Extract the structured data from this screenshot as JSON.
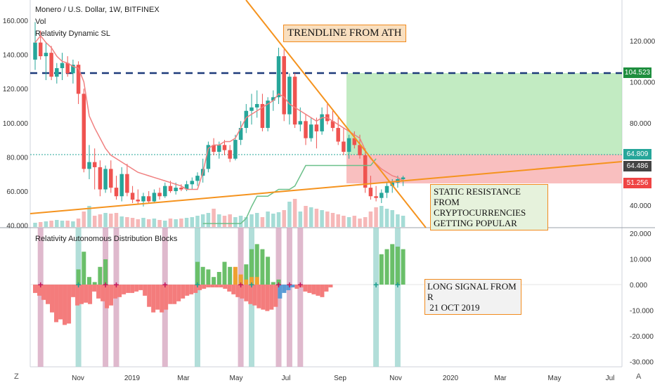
{
  "header": {
    "title": "Monero / U.S. Dollar, 1W, BITFINEX",
    "vol_label": "Vol",
    "indicator_label": "Relativity Dynamic SL",
    "lower_title": "Relativity Autonomous Distribution Blocks"
  },
  "annotations": {
    "trendline": "TRENDLINE FROM ATH",
    "static_lines": [
      "STATIC RESISTANCE",
      "FROM CRYPTOCURRENCIES",
      "GETTING POPULAR"
    ],
    "long_lines": [
      "LONG SIGNAL FROM R",
      " 21 OCT 2019"
    ]
  },
  "price_badges": [
    {
      "label": "104.523",
      "color": "#1e8e3e"
    },
    {
      "label": "64.809",
      "color": "#26a69a"
    },
    {
      "label": "64.486",
      "color": "#444444"
    },
    {
      "label": "51.256",
      "color": "#ef4444"
    }
  ],
  "bottom_left": "Z",
  "bottom_right": "A",
  "chart_data": [
    {
      "type": "candlestick",
      "title": "Monero / U.S. Dollar, 1W, BITFINEX",
      "left_axis_ticks": [
        "160.000",
        "140.000",
        "120.000",
        "100.000",
        "80.000",
        "60.000",
        "40.000"
      ],
      "right_axis_ticks": [
        "120.000",
        "100.000",
        "80.000",
        "60.000",
        "40.000"
      ],
      "x_ticks": [
        "Nov",
        "2019",
        "Mar",
        "May",
        "Jul",
        "Sep",
        "Nov",
        "2020",
        "Mar",
        "May",
        "Jul"
      ],
      "candles": [
        {
          "o": 138,
          "h": 160,
          "l": 132,
          "c": 148
        },
        {
          "o": 148,
          "h": 155,
          "l": 138,
          "c": 140
        },
        {
          "o": 140,
          "h": 148,
          "l": 126,
          "c": 142
        },
        {
          "o": 142,
          "h": 146,
          "l": 126,
          "c": 128
        },
        {
          "o": 128,
          "h": 136,
          "l": 124,
          "c": 133
        },
        {
          "o": 133,
          "h": 142,
          "l": 126,
          "c": 136
        },
        {
          "o": 136,
          "h": 140,
          "l": 128,
          "c": 130
        },
        {
          "o": 130,
          "h": 138,
          "l": 124,
          "c": 135
        },
        {
          "o": 135,
          "h": 137,
          "l": 112,
          "c": 118
        },
        {
          "o": 118,
          "h": 121,
          "l": 72,
          "c": 74
        },
        {
          "o": 74,
          "h": 88,
          "l": 68,
          "c": 78
        },
        {
          "o": 78,
          "h": 86,
          "l": 62,
          "c": 75
        },
        {
          "o": 75,
          "h": 79,
          "l": 58,
          "c": 62
        },
        {
          "o": 62,
          "h": 76,
          "l": 60,
          "c": 74
        },
        {
          "o": 74,
          "h": 79,
          "l": 60,
          "c": 63
        },
        {
          "o": 63,
          "h": 70,
          "l": 56,
          "c": 58
        },
        {
          "o": 58,
          "h": 75,
          "l": 55,
          "c": 71
        },
        {
          "o": 71,
          "h": 77,
          "l": 58,
          "c": 60
        },
        {
          "o": 60,
          "h": 64,
          "l": 54,
          "c": 56
        },
        {
          "o": 56,
          "h": 62,
          "l": 53,
          "c": 55
        },
        {
          "o": 55,
          "h": 60,
          "l": 52,
          "c": 58
        },
        {
          "o": 58,
          "h": 61,
          "l": 54,
          "c": 55
        },
        {
          "o": 55,
          "h": 62,
          "l": 54,
          "c": 60
        },
        {
          "o": 60,
          "h": 63,
          "l": 56,
          "c": 58
        },
        {
          "o": 58,
          "h": 66,
          "l": 57,
          "c": 64
        },
        {
          "o": 64,
          "h": 67,
          "l": 60,
          "c": 61
        },
        {
          "o": 61,
          "h": 66,
          "l": 59,
          "c": 63
        },
        {
          "o": 63,
          "h": 65,
          "l": 61,
          "c": 62
        },
        {
          "o": 62,
          "h": 67,
          "l": 61,
          "c": 65
        },
        {
          "o": 65,
          "h": 69,
          "l": 62,
          "c": 67
        },
        {
          "o": 67,
          "h": 72,
          "l": 64,
          "c": 70
        },
        {
          "o": 70,
          "h": 80,
          "l": 66,
          "c": 74
        },
        {
          "o": 74,
          "h": 90,
          "l": 72,
          "c": 88
        },
        {
          "o": 88,
          "h": 92,
          "l": 82,
          "c": 84
        },
        {
          "o": 84,
          "h": 90,
          "l": 80,
          "c": 88
        },
        {
          "o": 88,
          "h": 91,
          "l": 82,
          "c": 85
        },
        {
          "o": 85,
          "h": 88,
          "l": 78,
          "c": 80
        },
        {
          "o": 80,
          "h": 94,
          "l": 79,
          "c": 91
        },
        {
          "o": 91,
          "h": 102,
          "l": 88,
          "c": 98
        },
        {
          "o": 98,
          "h": 112,
          "l": 95,
          "c": 108
        },
        {
          "o": 108,
          "h": 118,
          "l": 100,
          "c": 110
        },
        {
          "o": 110,
          "h": 120,
          "l": 104,
          "c": 112
        },
        {
          "o": 112,
          "h": 118,
          "l": 96,
          "c": 98
        },
        {
          "o": 98,
          "h": 116,
          "l": 96,
          "c": 114
        },
        {
          "o": 114,
          "h": 120,
          "l": 108,
          "c": 116
        },
        {
          "o": 116,
          "h": 145,
          "l": 112,
          "c": 140
        },
        {
          "o": 140,
          "h": 144,
          "l": 102,
          "c": 106
        },
        {
          "o": 106,
          "h": 130,
          "l": 100,
          "c": 128
        },
        {
          "o": 128,
          "h": 130,
          "l": 98,
          "c": 100
        },
        {
          "o": 100,
          "h": 110,
          "l": 96,
          "c": 102
        },
        {
          "o": 102,
          "h": 106,
          "l": 88,
          "c": 92
        },
        {
          "o": 92,
          "h": 104,
          "l": 90,
          "c": 100
        },
        {
          "o": 100,
          "h": 104,
          "l": 86,
          "c": 96
        },
        {
          "o": 96,
          "h": 110,
          "l": 94,
          "c": 106
        },
        {
          "o": 106,
          "h": 112,
          "l": 100,
          "c": 102
        },
        {
          "o": 102,
          "h": 108,
          "l": 96,
          "c": 98
        },
        {
          "o": 98,
          "h": 104,
          "l": 88,
          "c": 90
        },
        {
          "o": 90,
          "h": 98,
          "l": 82,
          "c": 84
        },
        {
          "o": 84,
          "h": 94,
          "l": 80,
          "c": 92
        },
        {
          "o": 92,
          "h": 96,
          "l": 86,
          "c": 88
        },
        {
          "o": 88,
          "h": 94,
          "l": 80,
          "c": 82
        },
        {
          "o": 82,
          "h": 86,
          "l": 60,
          "c": 63
        },
        {
          "o": 63,
          "h": 70,
          "l": 56,
          "c": 58
        },
        {
          "o": 58,
          "h": 64,
          "l": 55,
          "c": 57
        },
        {
          "o": 57,
          "h": 62,
          "l": 54,
          "c": 60
        },
        {
          "o": 60,
          "h": 66,
          "l": 57,
          "c": 64
        },
        {
          "o": 64,
          "h": 68,
          "l": 60,
          "c": 66
        },
        {
          "o": 66,
          "h": 70,
          "l": 63,
          "c": 68
        },
        {
          "o": 68,
          "h": 70,
          "l": 64,
          "c": 69
        }
      ],
      "dynamic_sl": [
        148,
        152,
        148,
        145,
        140,
        137,
        136,
        134,
        133,
        125,
        105,
        98,
        92,
        86,
        82,
        80,
        78,
        76,
        74,
        72,
        71,
        70,
        69,
        68,
        67,
        66,
        65,
        64,
        62,
        62,
        62,
        72,
        86,
        88,
        88,
        90,
        90,
        92,
        98,
        104,
        106,
        108,
        110,
        112,
        114,
        118,
        116,
        112,
        110,
        108,
        106,
        104,
        102,
        104,
        104,
        102,
        100,
        98,
        96,
        94,
        92,
        85,
        80,
        77,
        74,
        72,
        70,
        69,
        67
      ],
      "green_step_line": [
        42,
        42,
        42,
        42,
        42,
        42,
        42,
        42,
        45,
        52,
        58,
        58,
        58,
        60,
        62,
        62,
        62,
        64,
        70,
        76,
        76,
        76,
        76,
        76,
        76,
        76,
        76,
        76,
        76,
        76,
        76,
        76,
        80
      ],
      "volume": [
        6,
        7,
        8,
        9,
        10,
        9,
        9,
        8,
        12,
        22,
        30,
        16,
        18,
        20,
        19,
        20,
        15,
        14,
        13,
        11,
        13,
        11,
        12,
        10,
        9,
        12,
        11,
        12,
        13,
        14,
        16,
        18,
        20,
        26,
        18,
        16,
        18,
        14,
        16,
        14,
        18,
        20,
        14,
        22,
        19,
        21,
        24,
        36,
        40,
        22,
        30,
        28,
        26,
        24,
        22,
        20,
        18,
        16,
        14,
        16,
        12,
        14,
        22,
        28,
        30,
        26,
        24,
        18,
        16
      ],
      "levels": {
        "dashed_resistance": 129,
        "target": 104.523,
        "entry": 64.809,
        "stop": 51.256,
        "last": 64.486
      }
    },
    {
      "type": "bar",
      "title": "Relativity Autonomous Distribution Blocks",
      "y_ticks": [
        "20.000",
        "10.000",
        "0.000",
        "-10.000",
        "-20.000",
        "-30.000"
      ],
      "ylim": [
        -31,
        21
      ],
      "values": [
        -6,
        -8,
        -11,
        -14,
        -20,
        -27,
        -25,
        -29,
        -28,
        -9,
        -15,
        -14,
        -13,
        -14,
        -5,
        -10,
        -12,
        -17,
        -15,
        -10,
        -9,
        -7,
        -6,
        -6,
        -5,
        -4,
        -8,
        -16,
        -20,
        -18,
        -20,
        -18,
        -14,
        -14,
        -12,
        -10,
        -8,
        -7,
        -6,
        -4,
        -3,
        -2,
        -2,
        -2,
        -2,
        -3,
        -5,
        -7,
        -9,
        -10,
        -12,
        -14,
        -15,
        -17,
        -18,
        -19,
        -18,
        -16,
        -10,
        -6,
        -4,
        -2,
        -3,
        -2,
        -5,
        -6,
        -7,
        -8,
        -9,
        -5,
        -2,
        8,
        6,
        4,
        5,
        9,
        11,
        9,
        12,
        13,
        15,
        16,
        15,
        14,
        13
      ],
      "positive_block_values": [
        6,
        13,
        3,
        1,
        7,
        10,
        9,
        7,
        6,
        3,
        5,
        9,
        7,
        4,
        3,
        8,
        14,
        16,
        14,
        11,
        7,
        4,
        2,
        3,
        3,
        2,
        1,
        1,
        2,
        12,
        14,
        16,
        15,
        14
      ],
      "signals": [
        {
          "type": "sell",
          "week": 1
        },
        {
          "type": "buy",
          "week": 8
        },
        {
          "type": "sell",
          "week": 13
        },
        {
          "type": "sell",
          "week": 15
        },
        {
          "type": "sell",
          "week": 24
        },
        {
          "type": "buy",
          "week": 30
        },
        {
          "type": "sell",
          "week": 38
        },
        {
          "type": "buy",
          "week": 40
        },
        {
          "type": "sell",
          "week": 45
        },
        {
          "type": "sell",
          "week": 47
        },
        {
          "type": "sell",
          "week": 49
        },
        {
          "type": "buy",
          "week": 63
        },
        {
          "type": "buy",
          "week": 67
        }
      ]
    }
  ]
}
